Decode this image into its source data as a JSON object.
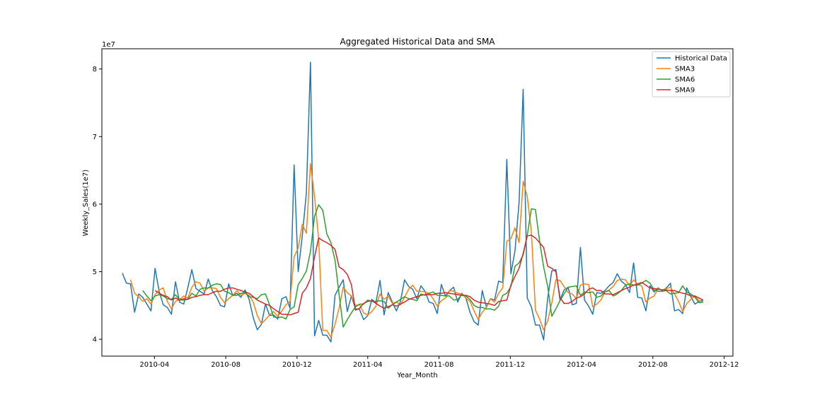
{
  "chart_data": {
    "type": "line",
    "title": "Aggregated Historical Data and SMA",
    "xlabel": "Year_Month",
    "ylabel": "Weekly_Sales(1e7)",
    "y_offset_label": "1e7",
    "xlim": [
      "2010-01-01",
      "2012-12-16"
    ],
    "ylim": [
      3.75,
      8.3
    ],
    "x_ticks": [
      {
        "label": "2010-04",
        "date": "2010-04-01"
      },
      {
        "label": "2010-08",
        "date": "2010-08-01"
      },
      {
        "label": "2010-12",
        "date": "2010-12-01"
      },
      {
        "label": "2011-04",
        "date": "2011-04-01"
      },
      {
        "label": "2011-08",
        "date": "2011-08-01"
      },
      {
        "label": "2011-12",
        "date": "2011-12-01"
      },
      {
        "label": "2012-04",
        "date": "2012-04-01"
      },
      {
        "label": "2012-08",
        "date": "2012-08-01"
      },
      {
        "label": "2012-12",
        "date": "2012-12-01"
      }
    ],
    "y_ticks": [
      4,
      5,
      6,
      7,
      8
    ],
    "grid": false,
    "legend_position": "top-right",
    "x": [
      "2010-02-05",
      "2010-02-12",
      "2010-02-19",
      "2010-02-26",
      "2010-03-05",
      "2010-03-12",
      "2010-03-19",
      "2010-03-26",
      "2010-04-02",
      "2010-04-09",
      "2010-04-16",
      "2010-04-23",
      "2010-04-30",
      "2010-05-07",
      "2010-05-14",
      "2010-05-21",
      "2010-05-28",
      "2010-06-04",
      "2010-06-11",
      "2010-06-18",
      "2010-06-25",
      "2010-07-02",
      "2010-07-09",
      "2010-07-16",
      "2010-07-23",
      "2010-07-30",
      "2010-08-06",
      "2010-08-13",
      "2010-08-20",
      "2010-08-27",
      "2010-09-03",
      "2010-09-10",
      "2010-09-17",
      "2010-09-24",
      "2010-10-01",
      "2010-10-08",
      "2010-10-15",
      "2010-10-22",
      "2010-10-29",
      "2010-11-05",
      "2010-11-12",
      "2010-11-19",
      "2010-11-26",
      "2010-12-03",
      "2010-12-10",
      "2010-12-17",
      "2010-12-24",
      "2010-12-31",
      "2011-01-07",
      "2011-01-14",
      "2011-01-21",
      "2011-01-28",
      "2011-02-04",
      "2011-02-11",
      "2011-02-18",
      "2011-02-25",
      "2011-03-04",
      "2011-03-11",
      "2011-03-18",
      "2011-03-25",
      "2011-04-01",
      "2011-04-08",
      "2011-04-15",
      "2011-04-22",
      "2011-04-29",
      "2011-05-06",
      "2011-05-13",
      "2011-05-20",
      "2011-05-27",
      "2011-06-03",
      "2011-06-10",
      "2011-06-17",
      "2011-06-24",
      "2011-07-01",
      "2011-07-08",
      "2011-07-15",
      "2011-07-22",
      "2011-07-29",
      "2011-08-05",
      "2011-08-12",
      "2011-08-19",
      "2011-08-26",
      "2011-09-02",
      "2011-09-09",
      "2011-09-16",
      "2011-09-23",
      "2011-09-30",
      "2011-10-07",
      "2011-10-14",
      "2011-10-21",
      "2011-10-28",
      "2011-11-04",
      "2011-11-11",
      "2011-11-18",
      "2011-11-25",
      "2011-12-02",
      "2011-12-09",
      "2011-12-16",
      "2011-12-23",
      "2011-12-30",
      "2012-01-06",
      "2012-01-13",
      "2012-01-20",
      "2012-01-27",
      "2012-02-03",
      "2012-02-10",
      "2012-02-17",
      "2012-02-24",
      "2012-03-02",
      "2012-03-09",
      "2012-03-16",
      "2012-03-23",
      "2012-03-30",
      "2012-04-06",
      "2012-04-13",
      "2012-04-20",
      "2012-04-27",
      "2012-05-04",
      "2012-05-11",
      "2012-05-18",
      "2012-05-25",
      "2012-06-01",
      "2012-06-08",
      "2012-06-15",
      "2012-06-22",
      "2012-06-29",
      "2012-07-06",
      "2012-07-13",
      "2012-07-20",
      "2012-07-27",
      "2012-08-03",
      "2012-08-10",
      "2012-08-17",
      "2012-08-24",
      "2012-08-31",
      "2012-09-07",
      "2012-09-14",
      "2012-09-21",
      "2012-09-28",
      "2012-10-05",
      "2012-10-12",
      "2012-10-19",
      "2012-10-26"
    ],
    "series": [
      {
        "name": "Historical Data",
        "color": "#1f77b4",
        "values": [
          4.98,
          4.83,
          4.82,
          4.4,
          4.67,
          4.62,
          4.52,
          4.42,
          5.05,
          4.71,
          4.51,
          4.47,
          4.37,
          4.85,
          4.55,
          4.52,
          4.76,
          5.03,
          4.75,
          4.71,
          4.67,
          4.89,
          4.72,
          4.63,
          4.5,
          4.48,
          4.82,
          4.65,
          4.68,
          4.62,
          4.73,
          4.59,
          4.32,
          4.14,
          4.22,
          4.52,
          4.35,
          4.36,
          4.3,
          4.6,
          4.63,
          4.46,
          6.58,
          5.0,
          5.53,
          6.17,
          8.1,
          4.05,
          4.28,
          4.06,
          4.06,
          3.96,
          4.65,
          4.77,
          4.88,
          4.41,
          4.64,
          4.45,
          4.44,
          4.29,
          4.35,
          4.59,
          4.54,
          4.87,
          4.36,
          4.69,
          4.55,
          4.42,
          4.56,
          4.88,
          4.78,
          4.74,
          4.6,
          4.79,
          4.71,
          4.55,
          4.53,
          4.38,
          4.81,
          4.64,
          4.72,
          4.77,
          4.55,
          4.68,
          4.61,
          4.4,
          4.26,
          4.21,
          4.72,
          4.48,
          4.6,
          4.58,
          4.86,
          4.84,
          6.66,
          4.97,
          5.31,
          6.02,
          7.7,
          4.61,
          4.48,
          4.21,
          4.21,
          3.99,
          4.61,
          5.01,
          5.03,
          4.58,
          4.73,
          4.77,
          4.51,
          4.53,
          5.36,
          4.58,
          4.49,
          4.37,
          4.69,
          4.68,
          4.72,
          4.79,
          4.84,
          4.97,
          4.86,
          4.81,
          4.69,
          5.13,
          4.62,
          4.61,
          4.42,
          4.79,
          4.7,
          4.76,
          4.72,
          4.76,
          4.83,
          4.42,
          4.44,
          4.38,
          4.76,
          4.63,
          4.52,
          4.56,
          4.58
        ]
      },
      {
        "name": "SMA3",
        "color": "#ff7f0e",
        "values": [
          null,
          null,
          4.88,
          4.68,
          4.63,
          4.56,
          4.6,
          4.52,
          4.66,
          4.73,
          4.76,
          4.56,
          4.45,
          4.56,
          4.59,
          4.64,
          4.61,
          4.77,
          4.85,
          4.83,
          4.71,
          4.76,
          4.76,
          4.75,
          4.62,
          4.54,
          4.6,
          4.65,
          4.72,
          4.65,
          4.68,
          4.65,
          4.55,
          4.35,
          4.23,
          4.29,
          4.36,
          4.41,
          4.34,
          4.42,
          4.51,
          4.56,
          5.22,
          5.35,
          5.7,
          5.57,
          6.6,
          6.11,
          5.48,
          4.13,
          4.13,
          4.03,
          4.22,
          4.46,
          4.77,
          4.69,
          4.64,
          4.5,
          4.51,
          4.39,
          4.36,
          4.41,
          4.49,
          4.67,
          4.59,
          4.64,
          4.53,
          4.55,
          4.51,
          4.62,
          4.74,
          4.8,
          4.71,
          4.71,
          4.7,
          4.68,
          4.6,
          4.49,
          4.57,
          4.61,
          4.72,
          4.71,
          4.68,
          4.67,
          4.61,
          4.56,
          4.42,
          4.29,
          4.4,
          4.47,
          4.6,
          4.55,
          4.68,
          4.76,
          5.45,
          5.49,
          5.65,
          5.43,
          6.34,
          6.11,
          5.6,
          4.43,
          4.3,
          4.14,
          4.27,
          4.54,
          4.88,
          4.87,
          4.78,
          4.69,
          4.67,
          4.6,
          4.8,
          4.82,
          4.81,
          4.48,
          4.52,
          4.58,
          4.7,
          4.73,
          4.78,
          4.87,
          4.89,
          4.88,
          4.79,
          4.88,
          4.81,
          4.79,
          4.55,
          4.61,
          4.64,
          4.75,
          4.73,
          4.75,
          4.77,
          4.67,
          4.56,
          4.41,
          4.53,
          4.59,
          4.64,
          4.57,
          4.55
        ]
      },
      {
        "name": "SMA6",
        "color": "#2ca02c",
        "values": [
          null,
          null,
          null,
          null,
          null,
          4.72,
          4.64,
          4.57,
          4.64,
          4.66,
          4.64,
          4.6,
          4.59,
          4.66,
          4.58,
          4.58,
          4.59,
          4.68,
          4.64,
          4.74,
          4.76,
          4.76,
          4.8,
          4.82,
          4.81,
          4.71,
          4.69,
          4.65,
          4.65,
          4.68,
          4.69,
          4.63,
          4.62,
          4.6,
          4.66,
          4.67,
          4.51,
          4.33,
          4.32,
          4.33,
          4.3,
          4.44,
          4.48,
          4.81,
          4.9,
          5.01,
          5.3,
          5.82,
          5.99,
          5.91,
          5.56,
          5.43,
          5.17,
          4.66,
          4.18,
          4.29,
          4.39,
          4.48,
          4.52,
          4.52,
          4.58,
          4.56,
          4.56,
          4.57,
          4.56,
          4.46,
          4.51,
          4.55,
          4.59,
          4.63,
          4.6,
          4.59,
          4.57,
          4.67,
          4.65,
          4.68,
          4.7,
          4.65,
          4.65,
          4.64,
          4.64,
          4.58,
          4.59,
          4.66,
          4.64,
          4.59,
          4.5,
          4.47,
          4.47,
          4.45,
          4.45,
          4.43,
          4.49,
          4.65,
          4.68,
          4.78,
          5.08,
          5.13,
          5.25,
          5.54,
          5.93,
          5.92,
          5.46,
          5.07,
          4.78,
          4.34,
          4.45,
          4.57,
          4.67,
          4.77,
          4.78,
          4.79,
          4.65,
          4.7,
          4.69,
          4.7,
          4.62,
          4.64,
          4.7,
          4.72,
          4.64,
          4.67,
          4.72,
          4.8,
          4.82,
          4.8,
          4.8,
          4.83,
          4.87,
          4.83,
          4.73,
          4.71,
          4.71,
          4.72,
          4.67,
          4.68,
          4.69,
          4.79,
          4.7,
          4.67,
          4.62,
          4.54,
          4.55
        ]
      },
      {
        "name": "SMA9",
        "color": "#d62728",
        "values": [
          null,
          null,
          null,
          null,
          null,
          null,
          null,
          null,
          4.72,
          4.68,
          4.65,
          4.63,
          4.58,
          4.61,
          4.58,
          4.6,
          4.59,
          4.62,
          4.63,
          4.65,
          4.66,
          4.66,
          4.69,
          4.71,
          4.71,
          4.74,
          4.76,
          4.76,
          4.74,
          4.72,
          4.7,
          4.68,
          4.63,
          4.58,
          4.55,
          4.52,
          4.5,
          4.45,
          4.41,
          4.37,
          4.37,
          4.36,
          4.38,
          4.4,
          4.68,
          4.76,
          4.9,
          5.22,
          5.5,
          5.46,
          5.43,
          5.39,
          5.33,
          5.07,
          5.03,
          4.96,
          4.81,
          4.43,
          4.46,
          4.53,
          4.56,
          4.57,
          4.53,
          4.49,
          4.46,
          4.48,
          4.51,
          4.49,
          4.52,
          4.55,
          4.59,
          4.61,
          4.63,
          4.65,
          4.66,
          4.66,
          4.66,
          4.68,
          4.68,
          4.69,
          4.68,
          4.67,
          4.66,
          4.65,
          4.65,
          4.63,
          4.58,
          4.55,
          4.54,
          4.53,
          4.52,
          4.5,
          4.56,
          4.57,
          4.58,
          4.8,
          4.93,
          5.05,
          5.27,
          5.53,
          5.54,
          5.5,
          5.43,
          5.36,
          5.08,
          5.05,
          5.0,
          4.62,
          4.53,
          4.53,
          4.56,
          4.61,
          4.63,
          4.67,
          4.74,
          4.76,
          4.72,
          4.72,
          4.67,
          4.67,
          4.66,
          4.69,
          4.72,
          4.75,
          4.77,
          4.8,
          4.82,
          4.84,
          4.8,
          4.76,
          4.75,
          4.74,
          4.73,
          4.73,
          4.72,
          4.72,
          4.7,
          4.68,
          4.67,
          4.64,
          4.64,
          4.61,
          4.58
        ]
      }
    ]
  }
}
